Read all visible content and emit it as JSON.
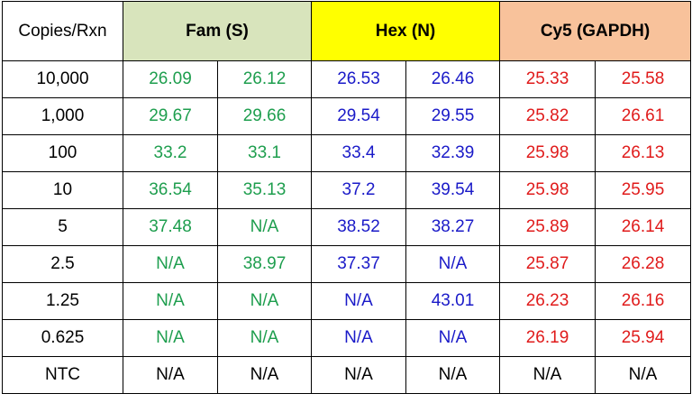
{
  "header": {
    "corner": "Copies/Rxn",
    "groups": [
      {
        "label": "Fam (S)",
        "bg": "#d8e4bc"
      },
      {
        "label": "Hex (N)",
        "bg": "#ffff00"
      },
      {
        "label": "Cy5 (GAPDH)",
        "bg": "#f8c29b"
      }
    ]
  },
  "text_colors": {
    "fam": "#1e9e4e",
    "hex": "#1a1ac8",
    "cy5": "#e01b1b",
    "ntc": "#000000"
  },
  "rows": [
    {
      "label": "10,000",
      "fam": [
        "26.09",
        "26.12"
      ],
      "hex": [
        "26.53",
        "26.46"
      ],
      "cy5": [
        "25.33",
        "25.58"
      ]
    },
    {
      "label": "1,000",
      "fam": [
        "29.67",
        "29.66"
      ],
      "hex": [
        "29.54",
        "29.55"
      ],
      "cy5": [
        "25.82",
        "26.61"
      ]
    },
    {
      "label": "100",
      "fam": [
        "33.2",
        "33.1"
      ],
      "hex": [
        "33.4",
        "32.39"
      ],
      "cy5": [
        "25.98",
        "26.13"
      ]
    },
    {
      "label": "10",
      "fam": [
        "36.54",
        "35.13"
      ],
      "hex": [
        "37.2",
        "39.54"
      ],
      "cy5": [
        "25.98",
        "25.95"
      ]
    },
    {
      "label": "5",
      "fam": [
        "37.48",
        "N/A"
      ],
      "hex": [
        "38.52",
        "38.27"
      ],
      "cy5": [
        "25.89",
        "26.14"
      ]
    },
    {
      "label": "2.5",
      "fam": [
        "N/A",
        "38.97"
      ],
      "hex": [
        "37.37",
        "N/A"
      ],
      "cy5": [
        "25.87",
        "26.28"
      ]
    },
    {
      "label": "1.25",
      "fam": [
        "N/A",
        "N/A"
      ],
      "hex": [
        "N/A",
        "43.01"
      ],
      "cy5": [
        "26.23",
        "26.16"
      ]
    },
    {
      "label": "0.625",
      "fam": [
        "N/A",
        "N/A"
      ],
      "hex": [
        "N/A",
        "N/A"
      ],
      "cy5": [
        "26.19",
        "25.94"
      ]
    },
    {
      "label": "NTC",
      "fam": [
        "N/A",
        "N/A"
      ],
      "hex": [
        "N/A",
        "N/A"
      ],
      "cy5": [
        "N/A",
        "N/A"
      ]
    }
  ],
  "chart_data": {
    "type": "table",
    "columns": [
      "Copies/Rxn",
      "Fam (S)",
      "Fam (S)",
      "Hex (N)",
      "Hex (N)",
      "Cy5 (GAPDH)",
      "Cy5 (GAPDH)"
    ],
    "rows": [
      [
        "10,000",
        "26.09",
        "26.12",
        "26.53",
        "26.46",
        "25.33",
        "25.58"
      ],
      [
        "1,000",
        "29.67",
        "29.66",
        "29.54",
        "29.55",
        "25.82",
        "26.61"
      ],
      [
        "100",
        "33.2",
        "33.1",
        "33.4",
        "32.39",
        "25.98",
        "26.13"
      ],
      [
        "10",
        "36.54",
        "35.13",
        "37.2",
        "39.54",
        "25.98",
        "25.95"
      ],
      [
        "5",
        "37.48",
        "N/A",
        "38.52",
        "38.27",
        "25.89",
        "26.14"
      ],
      [
        "2.5",
        "N/A",
        "38.97",
        "37.37",
        "N/A",
        "25.87",
        "26.28"
      ],
      [
        "1.25",
        "N/A",
        "N/A",
        "N/A",
        "43.01",
        "26.23",
        "26.16"
      ],
      [
        "0.625",
        "N/A",
        "N/A",
        "N/A",
        "N/A",
        "26.19",
        "25.94"
      ],
      [
        "NTC",
        "N/A",
        "N/A",
        "N/A",
        "N/A",
        "N/A",
        "N/A"
      ]
    ]
  }
}
